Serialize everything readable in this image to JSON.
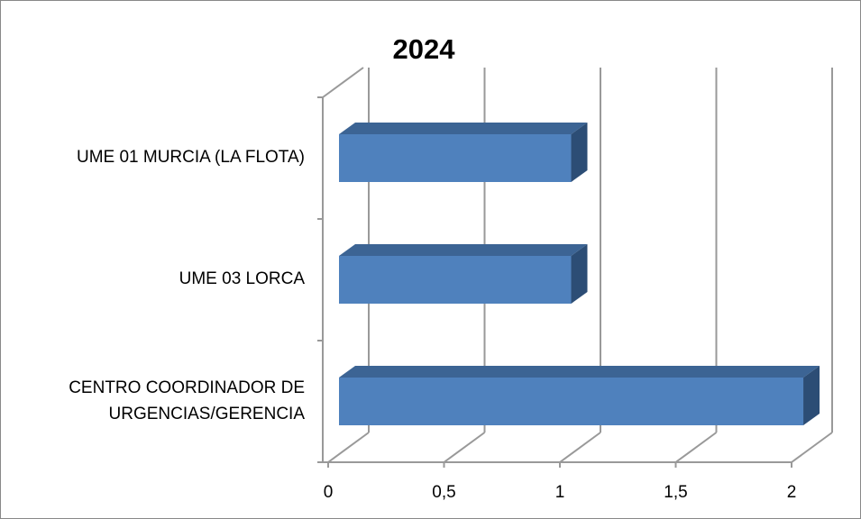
{
  "chart_data": {
    "type": "bar",
    "orientation": "horizontal",
    "title": "2024",
    "categories": [
      "UME 01 MURCIA (LA FLOTA)",
      "UME 03 LORCA",
      "CENTRO COORDINADOR DE URGENCIAS/GERENCIA"
    ],
    "values": [
      1,
      1,
      2
    ],
    "color": "#4f81bd",
    "xlim": [
      0,
      2
    ],
    "xticks": [
      0,
      {
        "value": 0.5,
        "label": "0,5"
      },
      1,
      {
        "value": 1.5,
        "label": "1,5"
      },
      2
    ],
    "grid": true
  }
}
